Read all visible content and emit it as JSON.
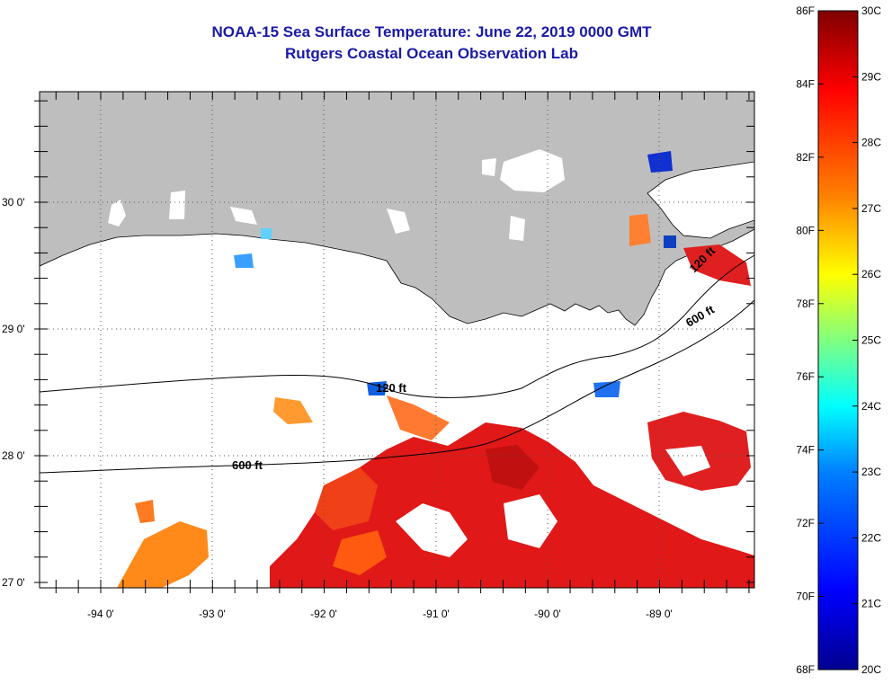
{
  "title": {
    "line1": "NOAA-15 Sea Surface Temperature:  June 22, 2019 0000 GMT",
    "line2": "Rutgers Coastal Ocean Observation Lab"
  },
  "map": {
    "lat_labels": [
      "30 0'",
      "29 0'",
      "28 0'",
      "27 0'"
    ],
    "lon_labels": [
      "-94 0'",
      "-93 0'",
      "-92 0'",
      "-91 0'",
      "-90 0'",
      "-89 0'"
    ],
    "contour_labels": [
      "120 ft",
      "600 ft",
      "120 ft",
      "600 ft"
    ],
    "land_color": "#bebebe"
  },
  "colorbar": {
    "f_labels": [
      "86F",
      "84F",
      "82F",
      "80F",
      "78F",
      "76F",
      "74F",
      "72F",
      "70F",
      "68F"
    ],
    "c_labels": [
      "30C",
      "29C",
      "28C",
      "27C",
      "26C",
      "25C",
      "24C",
      "23C",
      "22C",
      "21C",
      "20C"
    ],
    "colors": [
      "#00008f",
      "#0000ff",
      "#0080ff",
      "#00ffff",
      "#80ff80",
      "#ffff00",
      "#ff8000",
      "#ff0000",
      "#800000"
    ]
  }
}
